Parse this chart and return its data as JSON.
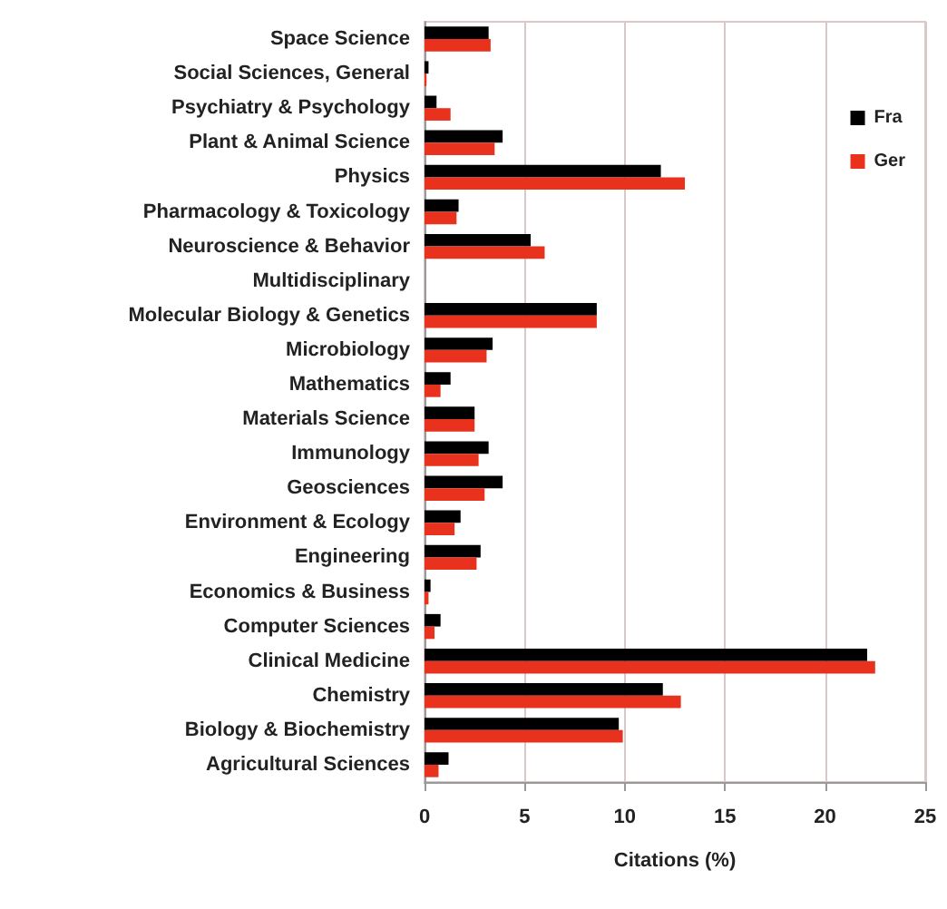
{
  "chart_data": {
    "type": "bar",
    "orientation": "horizontal",
    "xlabel": "Citations (%)",
    "categories": [
      "Space Science",
      "Social Sciences, General",
      "Psychiatry & Psychology",
      "Plant & Animal Science",
      "Physics",
      "Pharmacology & Toxicology",
      "Neuroscience & Behavior",
      "Multidisciplinary",
      "Molecular Biology & Genetics",
      "Microbiology",
      "Mathematics",
      "Materials Science",
      "Immunology",
      "Geosciences",
      "Environment & Ecology",
      "Engineering",
      "Economics & Business",
      "Computer Sciences",
      "Clinical Medicine",
      "Chemistry",
      "Biology & Biochemistry",
      "Agricultural Sciences"
    ],
    "series": [
      {
        "name": "Fra",
        "color": "#000000",
        "values": [
          3.2,
          0.2,
          0.6,
          3.9,
          11.8,
          1.7,
          5.3,
          0,
          8.6,
          3.4,
          1.3,
          2.5,
          3.2,
          3.9,
          1.8,
          2.8,
          0.3,
          0.8,
          22.1,
          11.9,
          9.7,
          1.2
        ]
      },
      {
        "name": "Ger",
        "color": "#e8321e",
        "values": [
          3.3,
          0.1,
          1.3,
          3.5,
          13.0,
          1.6,
          6.0,
          0,
          8.6,
          3.1,
          0.8,
          2.5,
          2.7,
          3.0,
          1.5,
          2.6,
          0.2,
          0.5,
          22.5,
          12.8,
          9.9,
          0.7
        ]
      }
    ],
    "xlim": [
      0,
      25
    ],
    "xticks": [
      0,
      5,
      10,
      15,
      20,
      25
    ],
    "grid": "x",
    "legend": "top right"
  }
}
